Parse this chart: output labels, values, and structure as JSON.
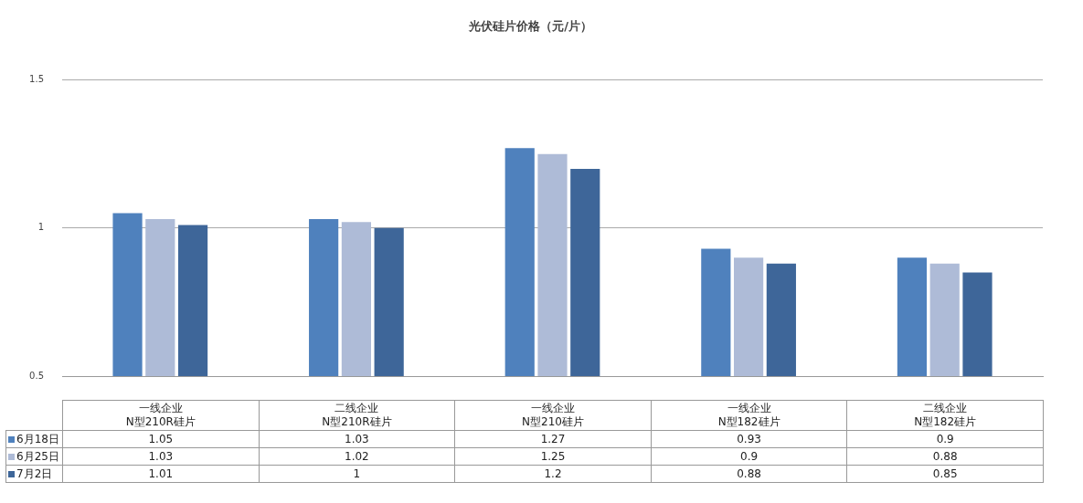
{
  "chart_data": {
    "type": "bar",
    "title": "光伏硅片价格（元/片）",
    "categories": [
      "一线企业\nN型210R硅片",
      "二线企业\nN型210R硅片",
      "一线企业\nN型210硅片",
      "一线企业\nN型182硅片",
      "二线企业\nN型182硅片"
    ],
    "series": [
      {
        "name": "6月18日",
        "color": "#4f81bd",
        "values": [
          1.05,
          1.03,
          1.27,
          0.93,
          0.9
        ]
      },
      {
        "name": "6月25日",
        "color": "#aebbd7",
        "values": [
          1.03,
          1.02,
          1.25,
          0.9,
          0.88
        ]
      },
      {
        "name": "7月2日",
        "color": "#3e6699",
        "values": [
          1.01,
          1,
          1.2,
          0.88,
          0.85
        ]
      }
    ],
    "ylim": [
      0.5,
      1.5
    ],
    "yticks": [
      0.5,
      1,
      1.5
    ],
    "grid": "y",
    "data_labels": true,
    "legend": "bottom left"
  }
}
